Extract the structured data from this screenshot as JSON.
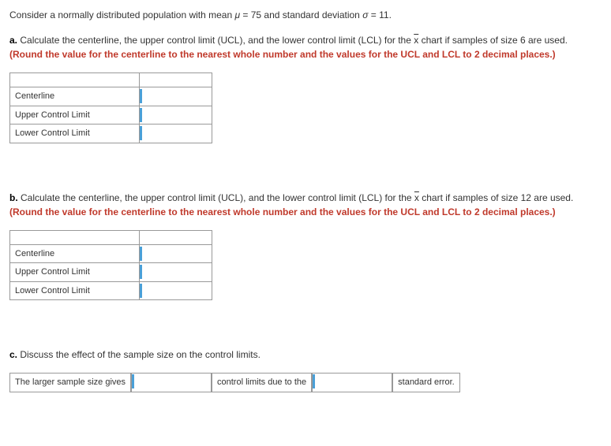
{
  "intro": {
    "text_before_mu": "Consider a normally distributed population with mean ",
    "mu_symbol": "μ",
    "mu_eq": " = 75 and standard deviation ",
    "sigma_symbol": "σ",
    "sigma_eq": " = 11."
  },
  "part_a": {
    "label": "a.",
    "text1": " Calculate the centerline, the upper control limit (UCL), and the lower control limit (LCL) for the ",
    "xbar": "x",
    "text2": " chart if samples of size 6 are used. ",
    "instruction": "(Round the value for the centerline to the nearest whole number and the values for the UCL and LCL to 2 decimal places.)",
    "table": {
      "rows": [
        {
          "label": "Centerline",
          "value": ""
        },
        {
          "label": "Upper Control Limit",
          "value": ""
        },
        {
          "label": "Lower Control Limit",
          "value": ""
        }
      ]
    }
  },
  "part_b": {
    "label": "b.",
    "text1": " Calculate the centerline, the upper control limit (UCL), and the lower control limit (LCL) for the ",
    "xbar": "x",
    "text2": " chart if samples of size 12 are used. ",
    "instruction": "(Round the value for the centerline to the nearest whole number and the values for the UCL and LCL to 2 decimal places.)",
    "table": {
      "rows": [
        {
          "label": "Centerline",
          "value": ""
        },
        {
          "label": "Upper Control Limit",
          "value": ""
        },
        {
          "label": "Lower Control Limit",
          "value": ""
        }
      ]
    }
  },
  "part_c": {
    "label": "c.",
    "text": " Discuss the effect of the sample size on the control limits.",
    "inline": {
      "seg1": "The larger sample size gives",
      "val1": "",
      "seg2": "control limits due to the",
      "val2": "",
      "seg3": "standard error."
    }
  }
}
